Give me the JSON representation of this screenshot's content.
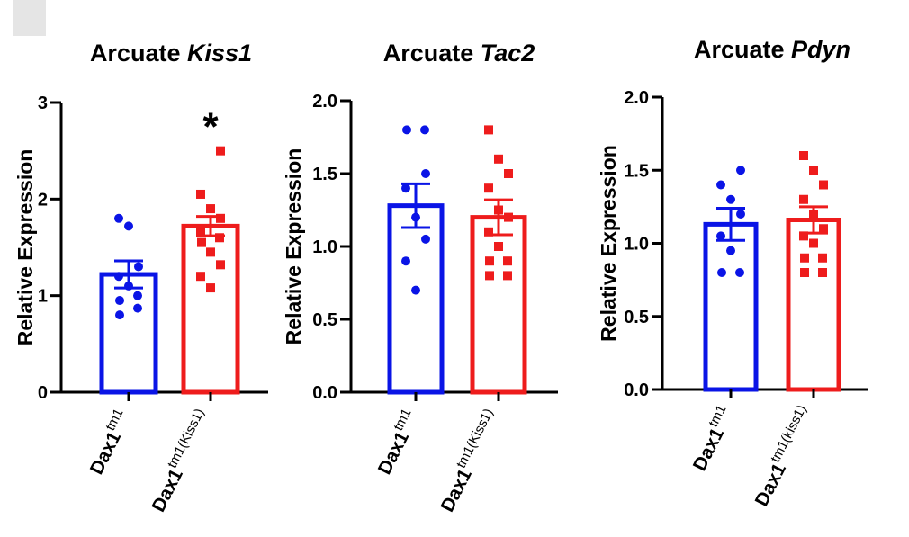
{
  "chart_data": [
    {
      "type": "bar",
      "title": "Arcuate ",
      "title_italic": "Kiss1",
      "ylabel": "Relative Expression",
      "ylim": [
        0,
        3
      ],
      "yticks": [
        "0",
        "1",
        "2",
        "3"
      ],
      "categories": [
        {
          "base": "Dax1",
          "sup": "tm1"
        },
        {
          "base": "Dax1",
          "sup": "tm1(Kiss1)"
        }
      ],
      "bars": [
        {
          "mean": 1.22,
          "sem": 0.14,
          "color": "#0a14e6",
          "marker": "circle",
          "points": [
            0.8,
            0.87,
            0.95,
            1.0,
            1.1,
            1.2,
            1.3,
            1.72,
            1.8
          ]
        },
        {
          "mean": 1.72,
          "sem": 0.1,
          "color": "#ee1c1c",
          "marker": "square",
          "points": [
            1.08,
            1.2,
            1.32,
            1.45,
            1.55,
            1.6,
            1.65,
            1.8,
            1.9,
            2.05,
            2.5
          ]
        }
      ],
      "significance": "*",
      "significance_bar": 1
    },
    {
      "type": "bar",
      "title": "Arcuate ",
      "title_italic": "Tac2",
      "ylabel": "Relative Expression",
      "ylim": [
        0,
        2
      ],
      "yticks": [
        "0.0",
        "0.5",
        "1.0",
        "1.5",
        "2.0"
      ],
      "categories": [
        {
          "base": "Dax1",
          "sup": "tm1"
        },
        {
          "base": "Dax1",
          "sup": "tm1(Kiss1)"
        }
      ],
      "bars": [
        {
          "mean": 1.28,
          "sem": 0.15,
          "color": "#0a14e6",
          "marker": "circle",
          "points": [
            0.7,
            0.9,
            1.05,
            1.2,
            1.4,
            1.5,
            1.8,
            1.8
          ]
        },
        {
          "mean": 1.2,
          "sem": 0.12,
          "color": "#ee1c1c",
          "marker": "square",
          "points": [
            0.8,
            0.8,
            0.9,
            0.9,
            1.0,
            1.1,
            1.2,
            1.25,
            1.4,
            1.5,
            1.6,
            1.8
          ]
        }
      ]
    },
    {
      "type": "bar",
      "title": "Arcuate ",
      "title_italic": "Pdyn",
      "ylabel": "Relative Expression",
      "ylim": [
        0,
        2
      ],
      "yticks": [
        "0.0",
        "0.5",
        "1.0",
        "1.5",
        "2.0"
      ],
      "categories": [
        {
          "base": "Dax1",
          "sup": "tm1"
        },
        {
          "base": "Dax1",
          "sup": "tm1(kiss1)"
        }
      ],
      "bars": [
        {
          "mean": 1.13,
          "sem": 0.11,
          "color": "#0a14e6",
          "marker": "circle",
          "points": [
            0.8,
            0.8,
            0.95,
            1.05,
            1.2,
            1.3,
            1.4,
            1.5
          ]
        },
        {
          "mean": 1.16,
          "sem": 0.09,
          "color": "#ee1c1c",
          "marker": "square",
          "points": [
            0.8,
            0.8,
            0.9,
            0.9,
            1.0,
            1.05,
            1.1,
            1.2,
            1.3,
            1.4,
            1.5,
            1.6
          ]
        }
      ]
    }
  ]
}
